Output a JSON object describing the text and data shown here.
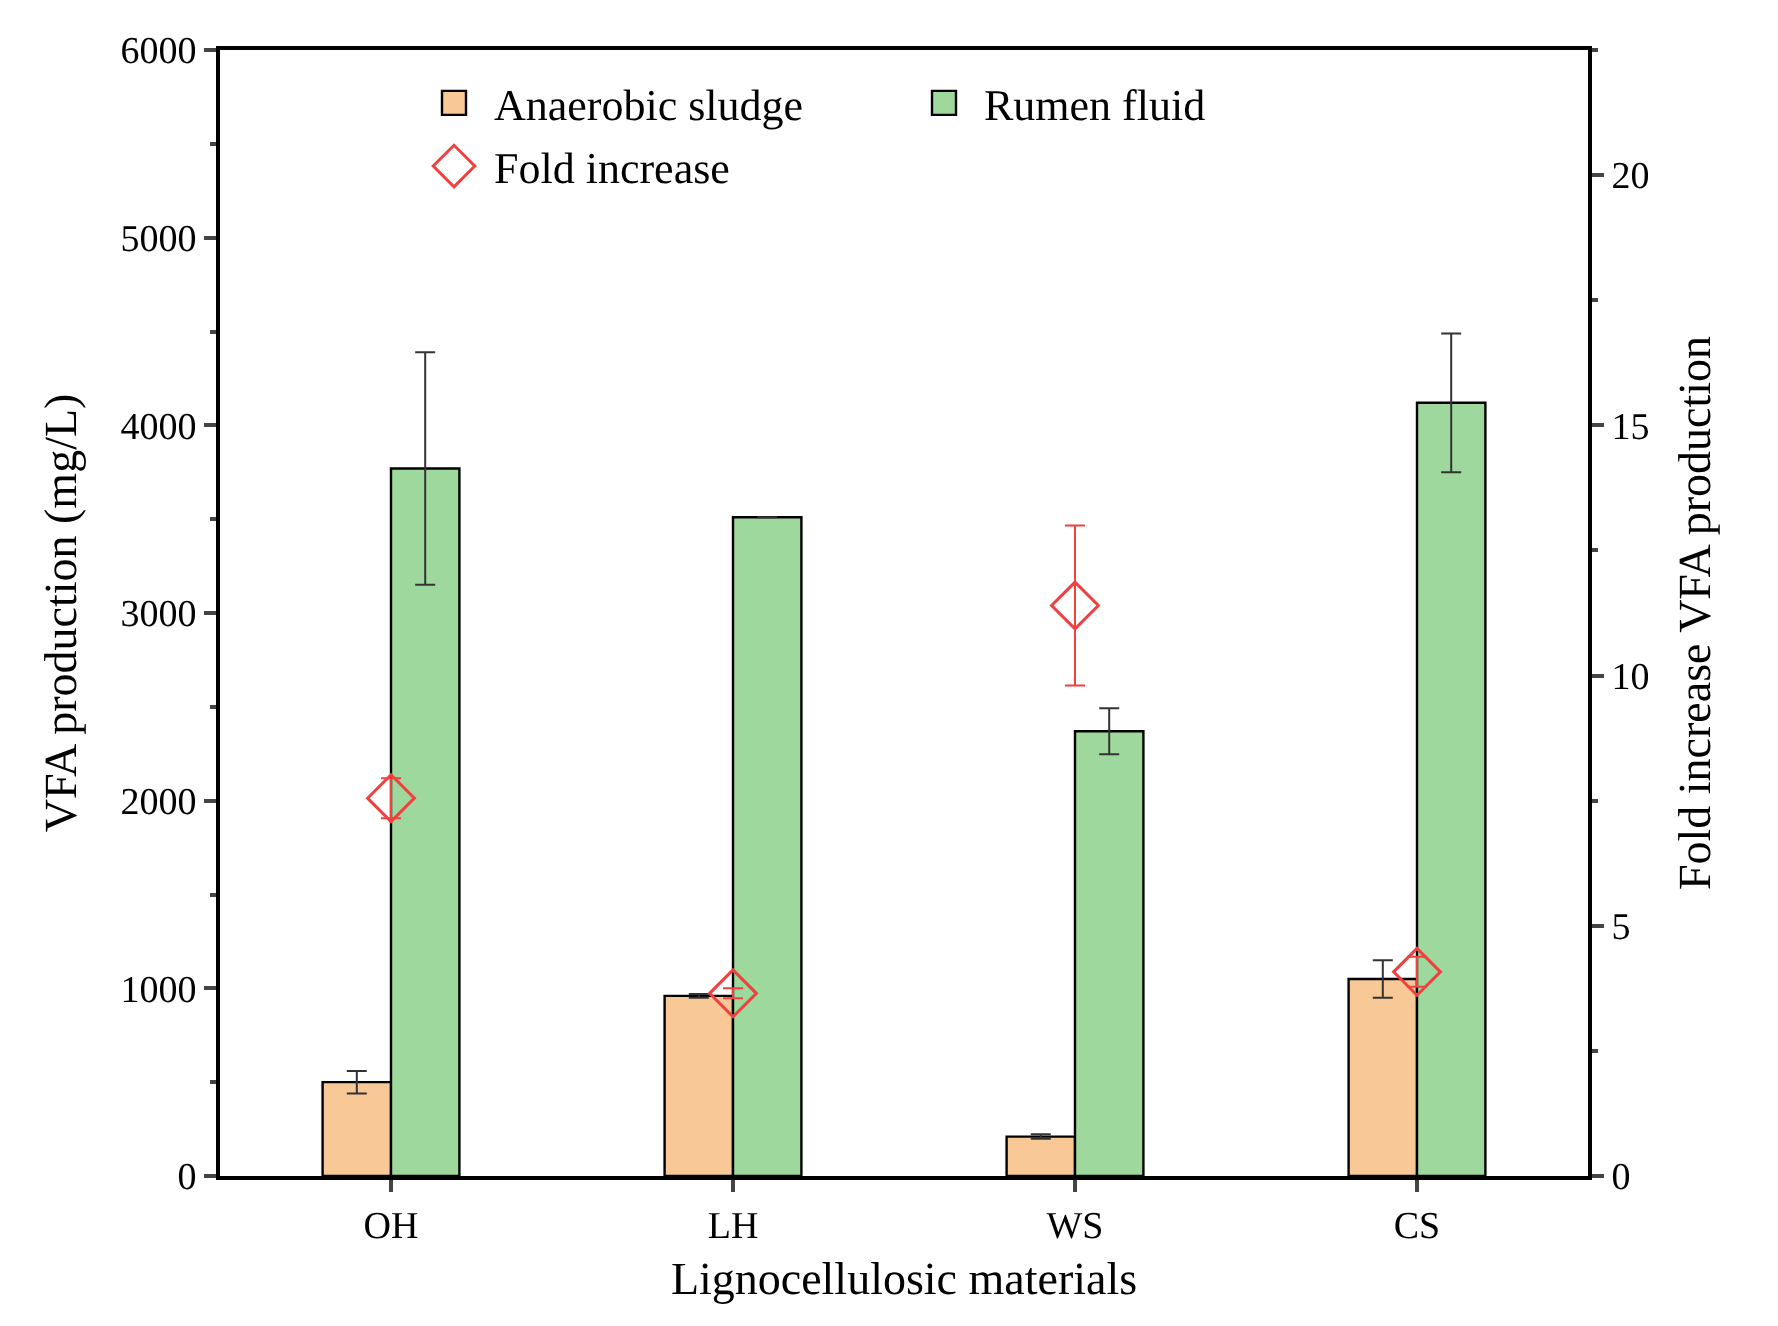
{
  "chart_data": {
    "type": "bar",
    "xlabel": "Lignocellulosic materials",
    "ylabel": "VFA production (mg/L)",
    "y2label": "Fold increase VFA production",
    "categories": [
      "OH",
      "LH",
      "WS",
      "CS"
    ],
    "series": [
      {
        "name": "Anaerobic sludge",
        "color": "#f9c897",
        "values": [
          500,
          960,
          210,
          1050
        ],
        "errors": [
          60,
          10,
          12,
          100
        ]
      },
      {
        "name": "Rumen fluid",
        "color": "#9fd89c",
        "values": [
          3770,
          3510,
          2370,
          4120
        ],
        "errors": [
          620,
          null,
          123,
          370
        ]
      },
      {
        "name": "Fold increase",
        "type": "scatter",
        "axis": "y2",
        "color": "#f04040",
        "marker": "diamond",
        "values": [
          7.55,
          3.65,
          11.4,
          4.08
        ],
        "errors": [
          0.4,
          0.1,
          1.6,
          0.3
        ]
      }
    ],
    "ylim": [
      0,
      6000
    ],
    "yticks": [
      0,
      1000,
      2000,
      3000,
      4000,
      5000,
      6000
    ],
    "y2lim": [
      0,
      22.5
    ],
    "y2ticks": [
      0,
      5,
      10,
      15,
      20
    ],
    "legend": "top"
  }
}
